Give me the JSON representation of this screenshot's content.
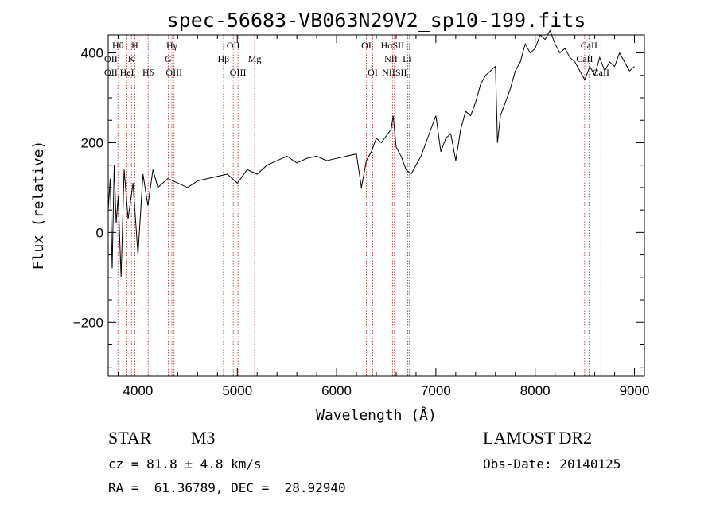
{
  "chart_data": {
    "type": "line",
    "title": "spec-56683-VB063N29V2_sp10-199.fits",
    "xlabel": "Wavelength (Å)",
    "ylabel": "Flux (relative)",
    "xlim": [
      3700,
      9100
    ],
    "ylim": [
      -320,
      440
    ],
    "x_ticks": [
      4000,
      5000,
      6000,
      7000,
      8000,
      9000
    ],
    "y_ticks": [
      -200,
      0,
      200,
      400
    ],
    "grid": false,
    "series": [
      {
        "x": [
          3700,
          3720,
          3740,
          3760,
          3780,
          3800,
          3830,
          3860,
          3900,
          3950,
          4000,
          4050,
          4100,
          4150,
          4200,
          4300,
          4400,
          4500,
          4600,
          4700,
          4800,
          4900,
          5000,
          5100,
          5200,
          5300,
          5400,
          5500,
          5600,
          5700,
          5800,
          5900,
          6000,
          6100,
          6200,
          6250,
          6300,
          6350,
          6400,
          6450,
          6500,
          6550,
          6570,
          6600,
          6650,
          6700,
          6750,
          6800,
          6850,
          6900,
          6950,
          7000,
          7050,
          7100,
          7150,
          7200,
          7250,
          7300,
          7350,
          7400,
          7450,
          7500,
          7550,
          7600,
          7620,
          7650,
          7700,
          7750,
          7800,
          7850,
          7900,
          7950,
          8000,
          8050,
          8100,
          8150,
          8200,
          8250,
          8300,
          8350,
          8400,
          8450,
          8500,
          8550,
          8600,
          8650,
          8700,
          8750,
          8800,
          8850,
          8900,
          8950,
          9000
        ],
        "y": [
          50,
          120,
          -80,
          150,
          20,
          80,
          -100,
          140,
          30,
          110,
          -50,
          130,
          60,
          140,
          100,
          120,
          110,
          100,
          115,
          120,
          125,
          130,
          110,
          140,
          130,
          150,
          160,
          170,
          155,
          165,
          170,
          160,
          165,
          170,
          175,
          100,
          160,
          180,
          210,
          200,
          215,
          230,
          260,
          190,
          170,
          140,
          130,
          150,
          170,
          200,
          230,
          260,
          180,
          210,
          220,
          160,
          230,
          270,
          260,
          290,
          330,
          350,
          360,
          370,
          200,
          260,
          290,
          320,
          360,
          380,
          420,
          400,
          410,
          440,
          430,
          450,
          420,
          400,
          410,
          390,
          380,
          360,
          340,
          370,
          350,
          390,
          360,
          380,
          370,
          400,
          380,
          360,
          370
        ]
      }
    ],
    "line_annotations": [
      {
        "label": "Hθ",
        "wave": 3798,
        "row": 0
      },
      {
        "label": "H",
        "wave": 3968,
        "row": 0
      },
      {
        "label": "Hγ",
        "wave": 4341,
        "row": 0
      },
      {
        "label": "OII",
        "wave": 4959,
        "row": 0
      },
      {
        "label": "OI",
        "wave": 6300,
        "row": 0
      },
      {
        "label": "HαSII",
        "wave": 6563,
        "row": 0
      },
      {
        "label": "CaII",
        "wave": 8542,
        "row": 0
      },
      {
        "label": "OII",
        "wave": 3727,
        "row": 1
      },
      {
        "label": "K",
        "wave": 3934,
        "row": 1
      },
      {
        "label": "G",
        "wave": 4304,
        "row": 1
      },
      {
        "label": "Hβ",
        "wave": 4861,
        "row": 1
      },
      {
        "label": "Mg",
        "wave": 5175,
        "row": 1
      },
      {
        "label": "NII",
        "wave": 6548,
        "row": 1
      },
      {
        "label": "Li",
        "wave": 6708,
        "row": 1
      },
      {
        "label": "CaII",
        "wave": 8498,
        "row": 1
      },
      {
        "label": "OII",
        "wave": 3727,
        "row": 2
      },
      {
        "label": "HeI",
        "wave": 3889,
        "row": 2
      },
      {
        "label": "Hδ",
        "wave": 4102,
        "row": 2
      },
      {
        "label": "OIII",
        "wave": 4363,
        "row": 2
      },
      {
        "label": "OIII",
        "wave": 5007,
        "row": 2
      },
      {
        "label": "OI",
        "wave": 6364,
        "row": 2
      },
      {
        "label": "NIISII",
        "wave": 6583,
        "row": 2
      },
      {
        "label": "CaII",
        "wave": 8662,
        "row": 2
      }
    ],
    "marker_lines": [
      3727,
      3798,
      3889,
      3934,
      3968,
      4102,
      4304,
      4341,
      4363,
      4861,
      4959,
      5007,
      5175,
      6300,
      6364,
      6548,
      6563,
      6583,
      6708,
      6716,
      6731,
      8498,
      8542,
      8662
    ]
  },
  "info": {
    "class_label": "STAR",
    "subclass_label": "M3",
    "cz_line": "cz = 81.8 ± 4.8 km/s",
    "radec_line": "RA =  61.36789, DEC =  28.92940",
    "survey_label": "LAMOST DR2",
    "obs_date_line": "Obs-Date: 20140125"
  },
  "colors": {
    "axis": "#000000",
    "spectrum": "#000000",
    "marker_line": "#b22222"
  }
}
